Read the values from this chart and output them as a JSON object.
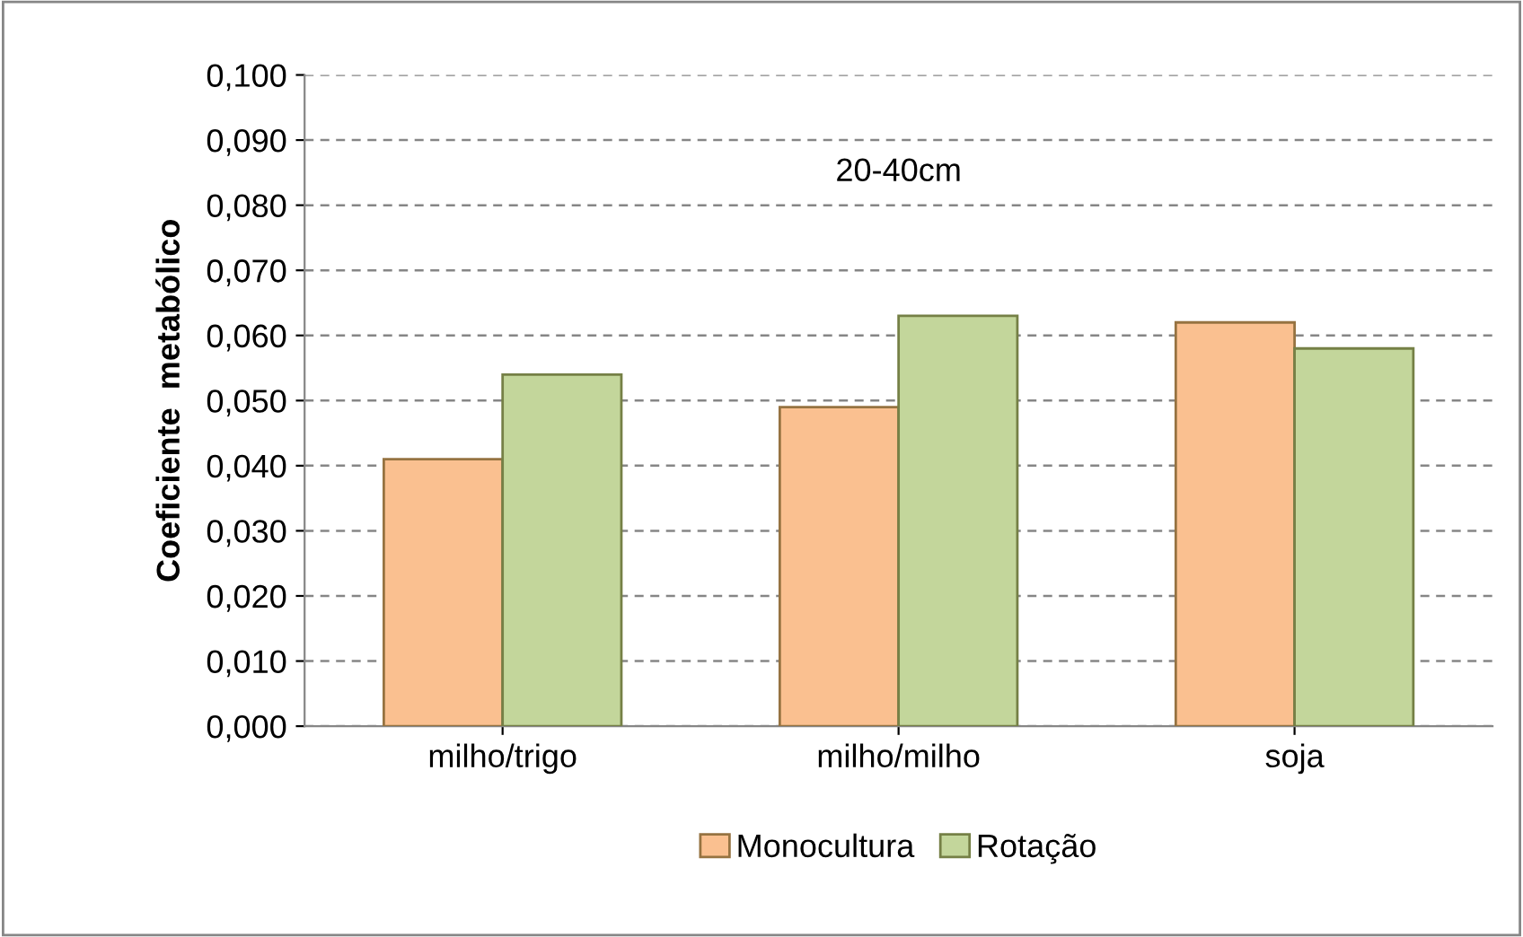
{
  "chart_data": {
    "type": "bar",
    "ylabel": "Coeficiente  metabólico",
    "categories": [
      "milho/trigo",
      "milho/milho",
      "soja"
    ],
    "series": [
      {
        "name": "Monocultura",
        "color": "#fac090",
        "values": [
          0.041,
          0.049,
          0.062
        ]
      },
      {
        "name": "Rotação",
        "color": "#c3d69b",
        "values": [
          0.054,
          0.063,
          0.058
        ]
      }
    ],
    "annotations": [
      "20-40cm"
    ],
    "ylim": [
      0,
      0.1
    ],
    "yticks": [
      {
        "value": 0,
        "label": "0,000"
      },
      {
        "value": 0.01,
        "label": "0,010"
      },
      {
        "value": 0.02,
        "label": "0,020"
      },
      {
        "value": 0.03,
        "label": "0,030"
      },
      {
        "value": 0.04,
        "label": "0,040"
      },
      {
        "value": 0.05,
        "label": "0,050"
      },
      {
        "value": 0.06,
        "label": "0,060"
      },
      {
        "value": 0.07,
        "label": "0,070"
      },
      {
        "value": 0.08,
        "label": "0,080"
      },
      {
        "value": 0.09,
        "label": "0,090"
      },
      {
        "value": 0.1,
        "label": "0,100"
      }
    ],
    "grid": "y",
    "legend": "bottom"
  }
}
